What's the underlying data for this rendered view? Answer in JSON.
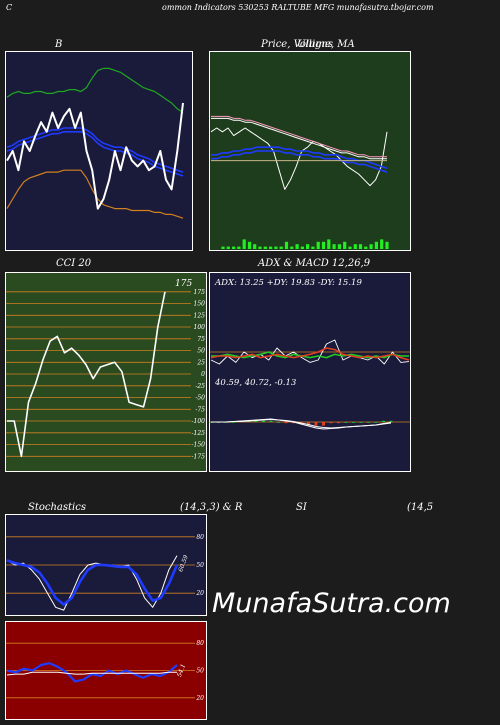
{
  "header": {
    "left": "C",
    "title": "ommon  Indicators 530253 RALTUBE MFG munafasutra.tbojar.com"
  },
  "watermark": "MunafaSutra.com",
  "colors": {
    "navy_panel": "#1a1a3a",
    "green_panel": "#1e3d1c",
    "cci_panel": "#2a4a20",
    "rsi_panel": "#8a0000",
    "orange": "#d08020",
    "blue": "#1f3bff",
    "green_line": "#22cc22"
  },
  "chart_data": [
    {
      "id": "bollinger",
      "type": "line",
      "title": "B",
      "ylim": [
        0,
        100
      ],
      "series": [
        {
          "role": "upper-band",
          "color": "#1fa81f",
          "values": [
            78,
            80,
            81,
            80,
            80,
            81,
            81,
            80,
            80,
            81,
            81,
            82,
            82,
            81,
            83,
            88,
            92,
            93,
            93,
            92,
            91,
            89,
            87,
            85,
            83,
            82,
            81,
            79,
            77,
            75,
            72,
            70
          ]
        },
        {
          "role": "middle-band-a",
          "color": "#1f3bff",
          "values": [
            52,
            53,
            55,
            56,
            57,
            58,
            59,
            60,
            61,
            61,
            62,
            62,
            62,
            62,
            61,
            59,
            56,
            54,
            53,
            52,
            52,
            51,
            50,
            48,
            47,
            46,
            44,
            43,
            42,
            41,
            40,
            39
          ]
        },
        {
          "role": "middle-band-b",
          "color": "#1f3bff",
          "values": [
            50,
            51,
            53,
            54,
            55,
            56,
            57,
            58,
            59,
            59,
            60,
            60,
            60,
            60,
            59,
            57,
            54,
            52,
            51,
            50,
            50,
            49,
            48,
            46,
            45,
            44,
            42,
            41,
            40,
            39,
            38,
            37
          ]
        },
        {
          "role": "lower-band",
          "color": "#d08020",
          "values": [
            20,
            25,
            30,
            34,
            36,
            37,
            38,
            39,
            39,
            39,
            40,
            40,
            40,
            40,
            36,
            30,
            25,
            22,
            21,
            20,
            20,
            20,
            19,
            19,
            19,
            19,
            18,
            18,
            17,
            17,
            16,
            15
          ]
        },
        {
          "role": "price",
          "color": "#ffffff",
          "values": [
            45,
            50,
            40,
            55,
            50,
            58,
            65,
            60,
            70,
            62,
            68,
            72,
            62,
            70,
            50,
            40,
            20,
            25,
            35,
            50,
            40,
            52,
            45,
            42,
            45,
            40,
            42,
            50,
            35,
            30,
            50,
            75
          ]
        }
      ]
    },
    {
      "id": "price-ma",
      "type": "line",
      "title": "Price,  Volume,  MA",
      "title_overlay": "Ulligns",
      "ylim": [
        0,
        100
      ],
      "series": [
        {
          "role": "ma-short",
          "color": "#ffffff",
          "values": [
            60,
            62,
            60,
            62,
            58,
            60,
            62,
            60,
            58,
            56,
            54,
            50,
            40,
            30,
            35,
            42,
            50,
            52,
            55,
            54,
            52,
            50,
            48,
            45,
            42,
            40,
            38,
            35,
            32,
            35,
            42,
            60
          ]
        },
        {
          "role": "ma-blue-a",
          "color": "#1f3bff",
          "values": [
            48,
            48,
            49,
            49,
            50,
            50,
            51,
            51,
            52,
            52,
            52,
            52,
            52,
            51,
            51,
            50,
            50,
            50,
            49,
            49,
            48,
            48,
            48,
            47,
            46,
            46,
            45,
            45,
            44,
            43,
            42,
            41
          ]
        },
        {
          "role": "ma-blue-b",
          "color": "#1f3bff",
          "values": [
            46,
            46,
            47,
            47,
            48,
            48,
            49,
            49,
            50,
            50,
            50,
            50,
            50,
            49,
            49,
            48,
            48,
            48,
            47,
            47,
            46,
            46,
            46,
            45,
            44,
            44,
            43,
            43,
            42,
            41,
            40,
            39
          ]
        },
        {
          "role": "ma-pink",
          "color": "#ff9ac0",
          "values": [
            68,
            68,
            68,
            68,
            67,
            67,
            66,
            66,
            65,
            64,
            63,
            62,
            61,
            60,
            59,
            58,
            57,
            56,
            55,
            54,
            53,
            52,
            51,
            50,
            50,
            49,
            48,
            48,
            47,
            47,
            47,
            47
          ]
        },
        {
          "role": "ma-white-long",
          "color": "#ffffff",
          "values": [
            67,
            67,
            67,
            67,
            66,
            66,
            65,
            65,
            64,
            63,
            62,
            61,
            60,
            59,
            58,
            57,
            56,
            55,
            54,
            53,
            52,
            51,
            50,
            49,
            49,
            48,
            47,
            47,
            46,
            46,
            46,
            46
          ]
        },
        {
          "role": "ma-tan",
          "color": "#c8b58a",
          "values": [
            45,
            45,
            45,
            45,
            45,
            45,
            45,
            45,
            45,
            45,
            45,
            45,
            45,
            45,
            45,
            45,
            45,
            45,
            45,
            45,
            45,
            45,
            45,
            45,
            45,
            45,
            45,
            45,
            45,
            45,
            45,
            45
          ]
        },
        {
          "role": "volume",
          "color": "#22ee22",
          "values": [
            1,
            1,
            1,
            1,
            4,
            3,
            2,
            1,
            1,
            1,
            1,
            1,
            3,
            1,
            2,
            1,
            2,
            1,
            3,
            3,
            4,
            2,
            2,
            3,
            1,
            2,
            2,
            1,
            2,
            3,
            4,
            3
          ]
        }
      ]
    },
    {
      "id": "cci",
      "type": "line",
      "title": "CCI 20",
      "label_last": "175",
      "ylim": [
        -200,
        200
      ],
      "yticks": [
        175,
        150,
        125,
        100,
        75,
        50,
        25,
        0,
        -25,
        -50,
        -75,
        -100,
        -125,
        -150,
        -175
      ],
      "series": [
        {
          "role": "cci",
          "color": "#ffffff",
          "values": [
            -100,
            -100,
            -175,
            -60,
            -20,
            30,
            70,
            80,
            45,
            55,
            40,
            20,
            -10,
            15,
            20,
            25,
            5,
            -60,
            -65,
            -70,
            -10,
            100,
            175
          ]
        }
      ]
    },
    {
      "id": "adx-macd",
      "type": "line",
      "title": "ADX  & MACD 12,26,9",
      "adx_text": "ADX: 13.25  +DY: 19.83 -DY: 15.19",
      "macd_text": "40.59,  40.72,  -0.13",
      "adx": {
        "ylim": [
          0,
          100
        ],
        "series": [
          {
            "role": "adx",
            "color": "#ffffff",
            "values": [
              15,
              10,
              20,
              12,
              25,
              18,
              22,
              15,
              30,
              20,
              25,
              18,
              12,
              15,
              35,
              40,
              15,
              20,
              18,
              15,
              20,
              10,
              25,
              12,
              13
            ]
          },
          {
            "role": "plus-di",
            "color": "#22cc22",
            "values": [
              20,
              20,
              22,
              20,
              18,
              20,
              22,
              25,
              20,
              18,
              22,
              20,
              18,
              20,
              18,
              22,
              20,
              22,
              20,
              18,
              20,
              18,
              22,
              20,
              20
            ]
          },
          {
            "role": "minus-di",
            "color": "#e04020",
            "values": [
              18,
              20,
              20,
              18,
              20,
              22,
              18,
              20,
              22,
              20,
              18,
              20,
              22,
              25,
              30,
              28,
              22,
              20,
              18,
              20,
              18,
              20,
              22,
              18,
              15
            ]
          }
        ]
      },
      "macd": {
        "ylim": [
          -60,
          60
        ],
        "series": [
          {
            "role": "macd",
            "color": "#ffffff",
            "values": [
              0,
              0,
              0,
              1,
              2,
              3,
              4,
              5,
              6,
              4,
              2,
              0,
              -4,
              -8,
              -12,
              -14,
              -13,
              -12,
              -10,
              -9,
              -8,
              -7,
              -6,
              -3,
              -1
            ]
          },
          {
            "role": "signal",
            "color": "#ffffff",
            "values": [
              0,
              0,
              0,
              1,
              1,
              2,
              3,
              4,
              5,
              4,
              3,
              1,
              -2,
              -5,
              -9,
              -11,
              -12,
              -11,
              -10,
              -9,
              -8,
              -7,
              -6,
              -4,
              -2
            ]
          },
          {
            "role": "histogram",
            "color": "#22cc22",
            "values": [
              0,
              0,
              0,
              0,
              1,
              1,
              1,
              1,
              1,
              0,
              -1,
              -1,
              -2,
              -3,
              -3,
              -3,
              -1,
              -1,
              0,
              0,
              0,
              0,
              0,
              1,
              1
            ]
          }
        ]
      }
    },
    {
      "id": "stochastics",
      "type": "line",
      "title": "Stochastics",
      "params": "(14,3,3) & R",
      "label_last": "60.59",
      "ylim": [
        0,
        100
      ],
      "yticks": [
        80,
        50,
        20
      ],
      "series": [
        {
          "role": "k",
          "color": "#ffffff",
          "values": [
            55,
            50,
            52,
            45,
            35,
            20,
            5,
            2,
            20,
            40,
            50,
            52,
            50,
            50,
            48,
            50,
            35,
            15,
            5,
            20,
            45,
            60
          ]
        },
        {
          "role": "d",
          "color": "#1f3bff",
          "values": [
            55,
            52,
            50,
            48,
            42,
            30,
            15,
            8,
            15,
            32,
            45,
            50,
            50,
            49,
            48,
            48,
            40,
            25,
            12,
            15,
            30,
            50
          ]
        }
      ]
    },
    {
      "id": "rsi",
      "type": "line",
      "title": "SI",
      "params": "(14,5",
      "label_last": "54.1",
      "ylim": [
        0,
        100
      ],
      "yticks": [
        80,
        50,
        20
      ],
      "series": [
        {
          "role": "rsi",
          "color": "#1f3bff",
          "values": [
            50,
            48,
            52,
            50,
            56,
            58,
            54,
            48,
            38,
            40,
            46,
            44,
            50,
            46,
            50,
            46,
            42,
            46,
            44,
            48,
            56
          ]
        },
        {
          "role": "rsi-white",
          "color": "#ffffff",
          "values": [
            45,
            46,
            46,
            48,
            48,
            48,
            48,
            47,
            46,
            46,
            47,
            47,
            47,
            47,
            47,
            47,
            47,
            47,
            47,
            48,
            48
          ]
        }
      ]
    }
  ]
}
